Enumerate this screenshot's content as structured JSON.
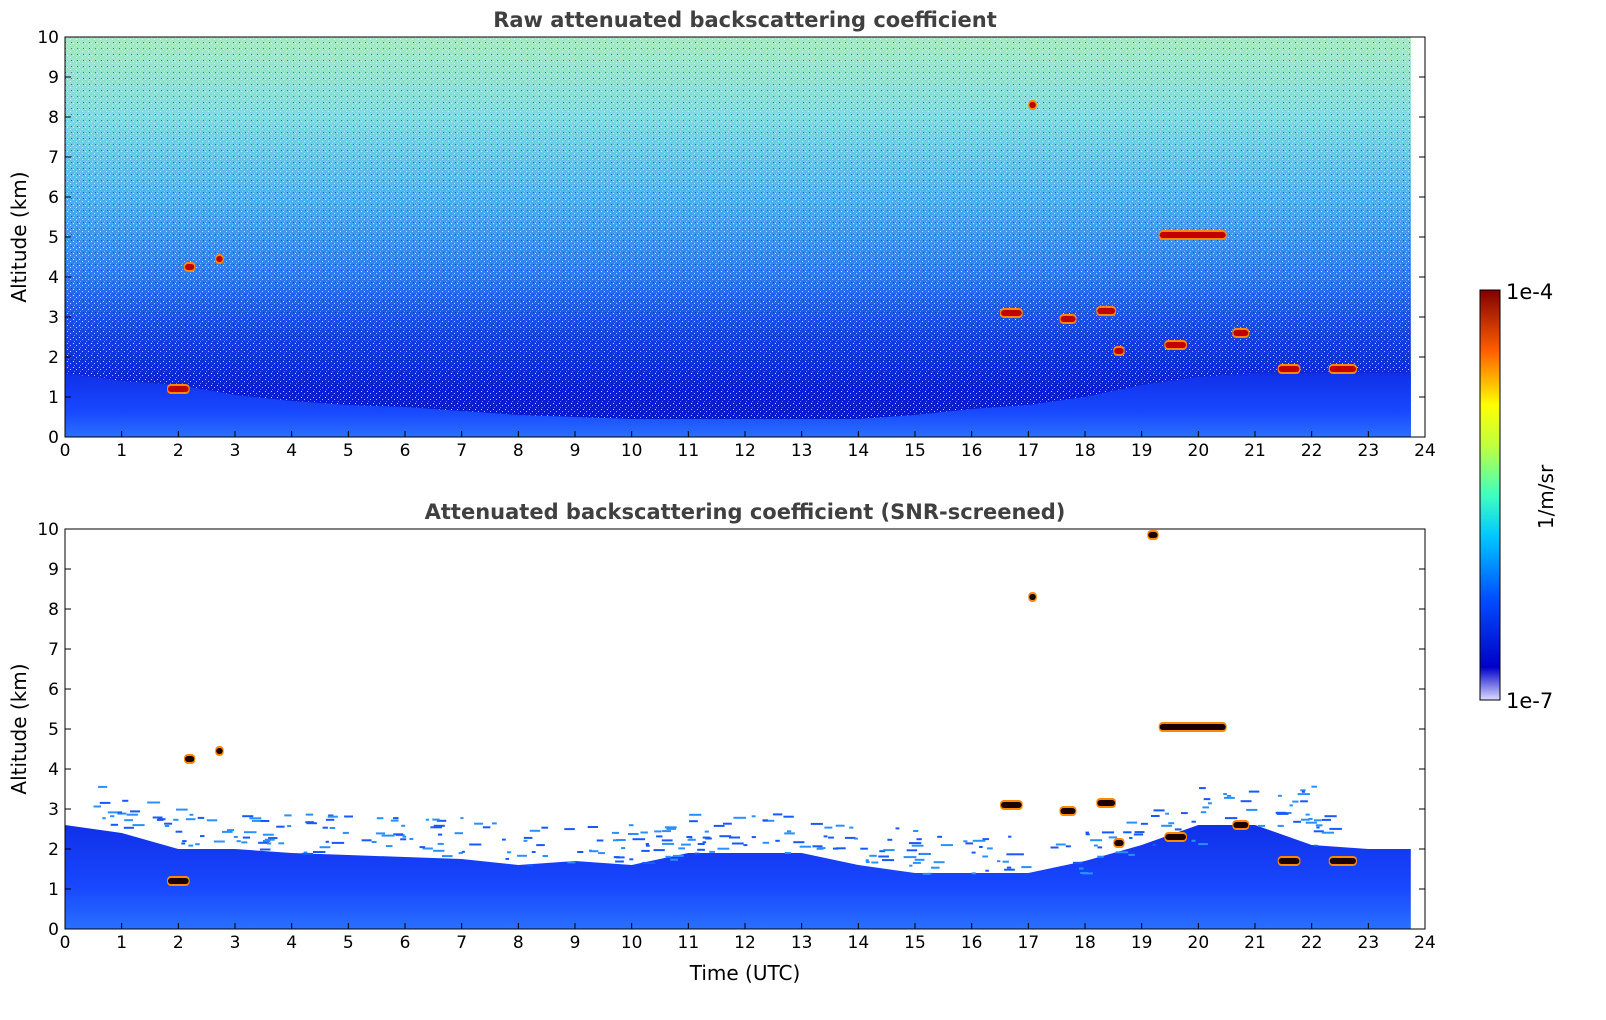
{
  "chart_data": [
    {
      "type": "heatmap",
      "title": "Raw attenuated backscattering coefficient",
      "xlabel": "",
      "ylabel": "Altitude (km)",
      "xlim": [
        0,
        24
      ],
      "ylim": [
        0,
        10
      ],
      "x_ticks": [
        "0",
        "1",
        "2",
        "3",
        "4",
        "5",
        "6",
        "7",
        "8",
        "9",
        "10",
        "11",
        "12",
        "13",
        "14",
        "15",
        "16",
        "17",
        "18",
        "19",
        "20",
        "21",
        "22",
        "23",
        "24"
      ],
      "y_ticks": [
        "0",
        "1",
        "2",
        "3",
        "4",
        "5",
        "6",
        "7",
        "8",
        "9",
        "10"
      ],
      "data_end_time": 23.75,
      "boundary_layer_top_km": [
        [
          0,
          1.6
        ],
        [
          1,
          1.4
        ],
        [
          2,
          1.3
        ],
        [
          3,
          1.05
        ],
        [
          4,
          0.9
        ],
        [
          5,
          0.8
        ],
        [
          6,
          0.75
        ],
        [
          7,
          0.65
        ],
        [
          8,
          0.55
        ],
        [
          9,
          0.5
        ],
        [
          10,
          0.45
        ],
        [
          11,
          0.45
        ],
        [
          12,
          0.45
        ],
        [
          13,
          0.45
        ],
        [
          14,
          0.45
        ],
        [
          15,
          0.55
        ],
        [
          16,
          0.7
        ],
        [
          17,
          0.8
        ],
        [
          18,
          1.0
        ],
        [
          19,
          1.3
        ],
        [
          20,
          1.5
        ],
        [
          21,
          1.6
        ],
        [
          22,
          1.6
        ],
        [
          23,
          1.6
        ],
        [
          23.75,
          1.6
        ]
      ],
      "cloud_features": [
        {
          "time": [
            2.1,
            2.3
          ],
          "altitude_km": 4.25
        },
        {
          "time": [
            2.65,
            2.8
          ],
          "altitude_km": 4.45
        },
        {
          "time": [
            1.8,
            2.2
          ],
          "altitude_km": 1.2
        },
        {
          "time": [
            16.5,
            16.9
          ],
          "altitude_km": 3.1
        },
        {
          "time": [
            17.55,
            17.85
          ],
          "altitude_km": 2.95
        },
        {
          "time": [
            18.2,
            18.55
          ],
          "altitude_km": 3.15
        },
        {
          "time": [
            18.5,
            18.7
          ],
          "altitude_km": 2.15
        },
        {
          "time": [
            19.3,
            20.5
          ],
          "altitude_km": 5.05
        },
        {
          "time": [
            19.4,
            19.8
          ],
          "altitude_km": 2.3
        },
        {
          "time": [
            20.6,
            20.9
          ],
          "altitude_km": 2.6
        },
        {
          "time": [
            21.4,
            21.8
          ],
          "altitude_km": 1.7
        },
        {
          "time": [
            22.3,
            22.8
          ],
          "altitude_km": 1.7
        },
        {
          "time": [
            17.0,
            17.15
          ],
          "altitude_km": 8.3
        }
      ]
    },
    {
      "type": "heatmap",
      "title": "Attenuated backscattering coefficient (SNR-screened)",
      "xlabel": "Time (UTC)",
      "ylabel": "Altitude (km)",
      "xlim": [
        0,
        24
      ],
      "ylim": [
        0,
        10
      ],
      "x_ticks": [
        "0",
        "1",
        "2",
        "3",
        "4",
        "5",
        "6",
        "7",
        "8",
        "9",
        "10",
        "11",
        "12",
        "13",
        "14",
        "15",
        "16",
        "17",
        "18",
        "19",
        "20",
        "21",
        "22",
        "23",
        "24"
      ],
      "y_ticks": [
        "0",
        "1",
        "2",
        "3",
        "4",
        "5",
        "6",
        "7",
        "8",
        "9",
        "10"
      ],
      "data_end_time": 23.75,
      "screened_top_km": [
        [
          0,
          2.6
        ],
        [
          1,
          2.4
        ],
        [
          2,
          2.0
        ],
        [
          3,
          2.0
        ],
        [
          4,
          1.9
        ],
        [
          5,
          1.85
        ],
        [
          6,
          1.8
        ],
        [
          7,
          1.75
        ],
        [
          8,
          1.6
        ],
        [
          9,
          1.7
        ],
        [
          10,
          1.6
        ],
        [
          11,
          1.9
        ],
        [
          12,
          1.9
        ],
        [
          13,
          1.9
        ],
        [
          14,
          1.6
        ],
        [
          15,
          1.4
        ],
        [
          16,
          1.4
        ],
        [
          17,
          1.4
        ],
        [
          18,
          1.7
        ],
        [
          19,
          2.1
        ],
        [
          20,
          2.6
        ],
        [
          21,
          2.6
        ],
        [
          22,
          2.1
        ],
        [
          23,
          2.0
        ],
        [
          23.75,
          2.0
        ]
      ],
      "cloud_features": [
        {
          "time": [
            2.1,
            2.3
          ],
          "altitude_km": 4.25
        },
        {
          "time": [
            2.65,
            2.8
          ],
          "altitude_km": 4.45
        },
        {
          "time": [
            1.8,
            2.2
          ],
          "altitude_km": 1.2
        },
        {
          "time": [
            16.5,
            16.9
          ],
          "altitude_km": 3.1
        },
        {
          "time": [
            17.55,
            17.85
          ],
          "altitude_km": 2.95
        },
        {
          "time": [
            18.2,
            18.55
          ],
          "altitude_km": 3.15
        },
        {
          "time": [
            18.5,
            18.7
          ],
          "altitude_km": 2.15
        },
        {
          "time": [
            19.3,
            20.5
          ],
          "altitude_km": 5.05
        },
        {
          "time": [
            19.4,
            19.8
          ],
          "altitude_km": 2.3
        },
        {
          "time": [
            20.6,
            20.9
          ],
          "altitude_km": 2.6
        },
        {
          "time": [
            21.4,
            21.8
          ],
          "altitude_km": 1.7
        },
        {
          "time": [
            22.3,
            22.8
          ],
          "altitude_km": 1.7
        },
        {
          "time": [
            17.0,
            17.15
          ],
          "altitude_km": 8.3
        },
        {
          "time": [
            19.1,
            19.3
          ],
          "altitude_km": 9.85
        }
      ]
    }
  ],
  "colorbar": {
    "label": "1/m/sr",
    "max_label": "1e-4",
    "min_label": "1e-7",
    "colormap": "jet"
  }
}
